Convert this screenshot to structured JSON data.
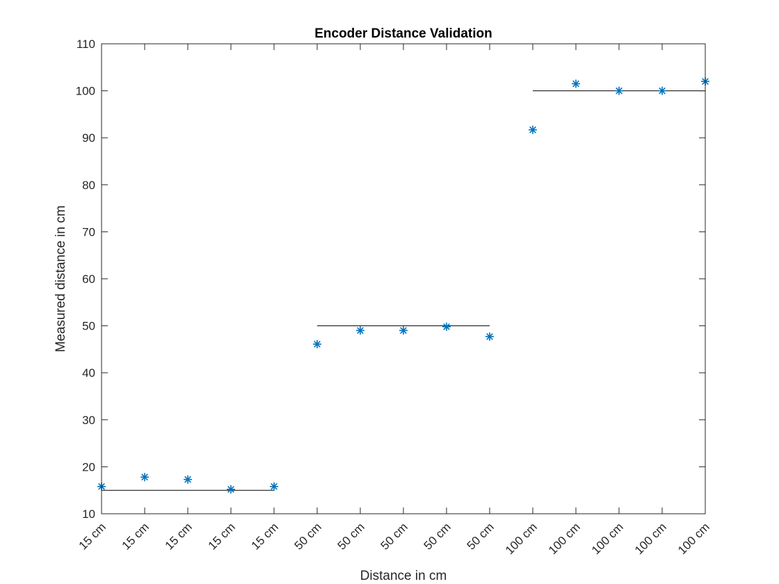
{
  "chart_data": {
    "type": "scatter",
    "title": "Encoder Distance Validation",
    "xlabel": "Distance in cm",
    "ylabel": "Measured distance in cm",
    "xlim": [
      1,
      15
    ],
    "ylim": [
      10,
      110
    ],
    "yticks": [
      10,
      20,
      30,
      40,
      50,
      60,
      70,
      80,
      90,
      100,
      110
    ],
    "categories": [
      "15 cm",
      "15 cm",
      "15 cm",
      "15 cm",
      "15 cm",
      "50 cm",
      "50 cm",
      "50 cm",
      "50 cm",
      "50 cm",
      "100 cm",
      "100 cm",
      "100 cm",
      "100 cm",
      "100 cm"
    ],
    "grid": false,
    "series": [
      {
        "marker": "asterisk",
        "color": "#0072BD",
        "x": [
          1,
          2,
          3,
          4,
          5,
          6,
          7,
          8,
          9,
          10,
          11,
          12,
          13,
          14,
          15
        ],
        "values": [
          15.8,
          17.8,
          17.3,
          15.2,
          15.8,
          46.1,
          49.0,
          49.0,
          49.8,
          47.7,
          91.7,
          101.5,
          100.0,
          100.0,
          102.0
        ]
      }
    ],
    "reference_lines": [
      {
        "x": [
          1,
          5
        ],
        "y": 15,
        "color": "#000000"
      },
      {
        "x": [
          6,
          10
        ],
        "y": 50,
        "color": "#000000"
      },
      {
        "x": [
          11,
          15
        ],
        "y": 100,
        "color": "#000000"
      }
    ]
  }
}
